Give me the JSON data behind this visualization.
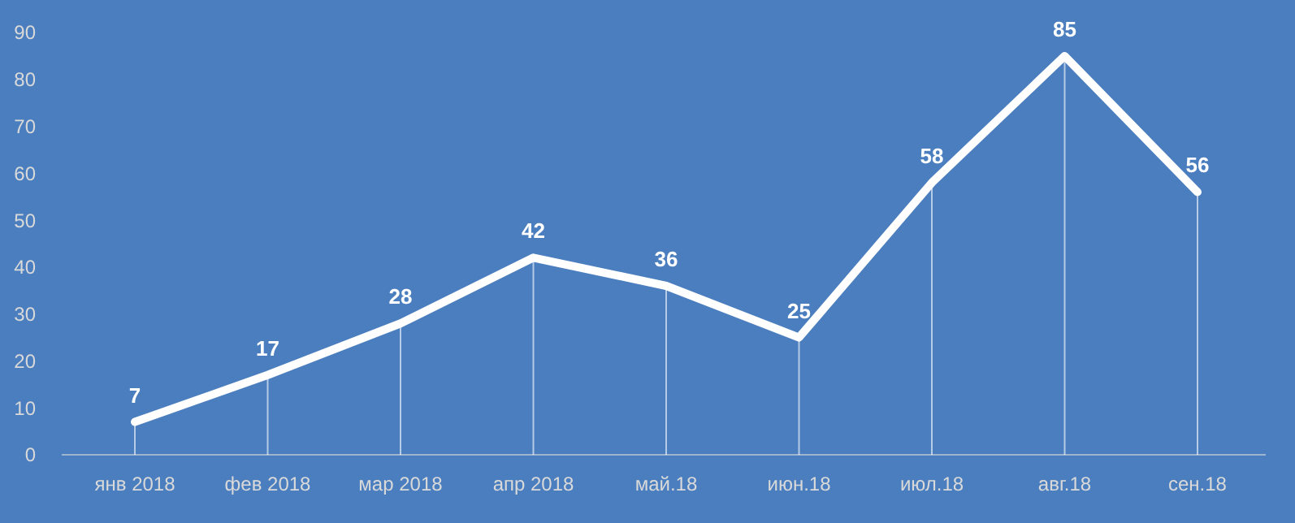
{
  "chart_data": {
    "type": "line",
    "categories": [
      "янв 2018",
      "фев 2018",
      "мар 2018",
      "апр 2018",
      "май.18",
      "июн.18",
      "июл.18",
      "авг.18",
      "сен.18"
    ],
    "series": [
      {
        "color": "#ffffff",
        "values": [
          7,
          17,
          28,
          42,
          36,
          25,
          58,
          85,
          56
        ]
      }
    ],
    "ylim": [
      0,
      90
    ],
    "yticks": [
      0,
      10,
      20,
      30,
      40,
      50,
      60,
      70,
      80,
      90
    ],
    "grid": "x",
    "data_labels": true,
    "marker": "none",
    "line_style": "solid"
  }
}
